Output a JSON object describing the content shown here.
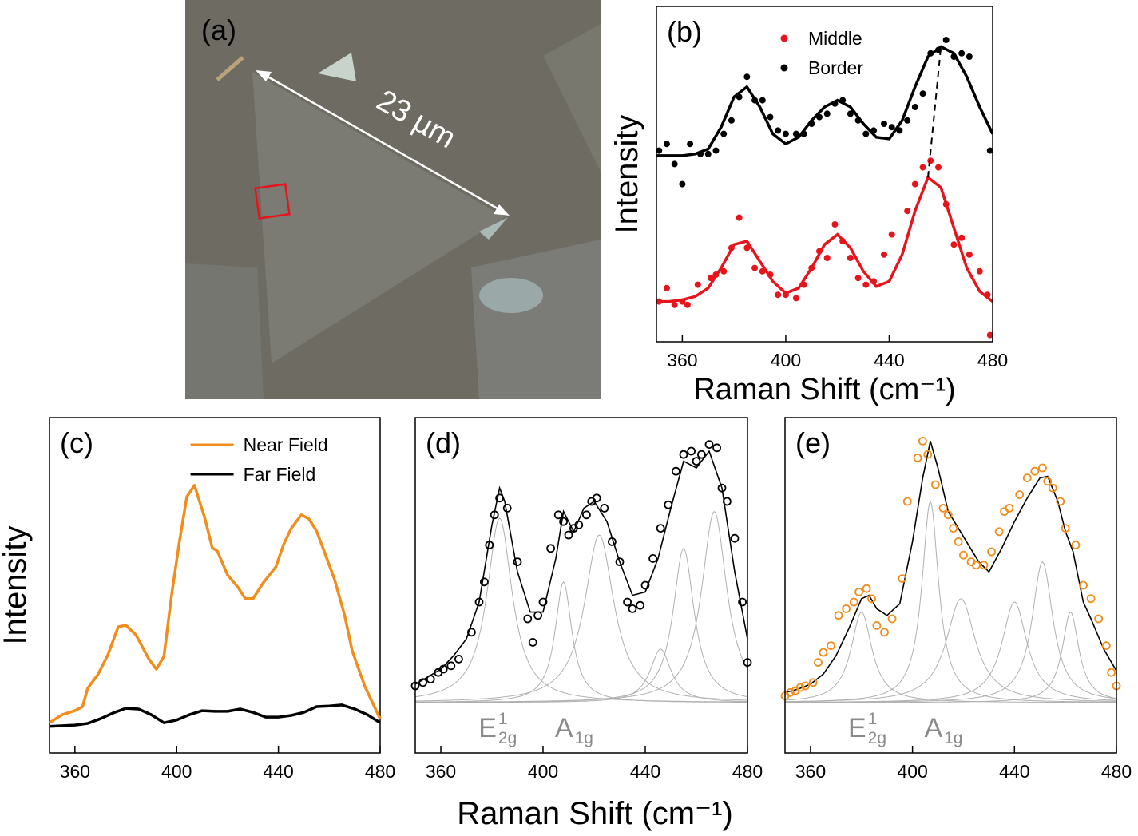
{
  "chart_data": [
    {
      "type": "image",
      "label": "(a)",
      "annotation": "23 µm"
    },
    {
      "type": "scatter",
      "label": "(b)",
      "x_label": "Raman Shift (cm⁻¹)",
      "y_label": "Intensity",
      "xlim": [
        350,
        480
      ],
      "xticks": [
        360,
        400,
        440,
        480
      ],
      "ylim": [
        0,
        10
      ],
      "legend": "top",
      "peak_guide": true,
      "series": [
        {
          "name": "Middle",
          "color": "#e8141c",
          "x": [
            351,
            354,
            357,
            360,
            362,
            366,
            371,
            373,
            376,
            379,
            382,
            385,
            388,
            391,
            394,
            397,
            400,
            404,
            407,
            410,
            413,
            416,
            419,
            422,
            425,
            428,
            431,
            434,
            438,
            441,
            447,
            450,
            453,
            456,
            459,
            462,
            465,
            468,
            471,
            475,
            478,
            479
          ],
          "values": [
            1.2,
            1.6,
            1.1,
            1.2,
            1.1,
            1.7,
            1.9,
            2.0,
            2.1,
            2.8,
            3.7,
            2.8,
            2.2,
            2.1,
            2.0,
            1.4,
            1.4,
            1.3,
            1.7,
            2.2,
            2.7,
            2.5,
            3.5,
            3.0,
            2.5,
            1.9,
            1.7,
            1.8,
            2.6,
            3.2,
            3.9,
            4.7,
            5.2,
            5.4,
            5.2,
            4.1,
            2.9,
            3.1,
            2.6,
            2.1,
            1.4,
            0.2
          ],
          "fit": {
            "x": [
              350,
              355,
              360,
              365,
              370,
              375,
              380,
              385,
              390,
              395,
              400,
              405,
              410,
              415,
              420,
              425,
              430,
              435,
              440,
              445,
              450,
              455,
              460,
              465,
              470,
              475,
              480
            ],
            "values": [
              1.2,
              1.2,
              1.25,
              1.35,
              1.6,
              2.2,
              2.9,
              3.0,
              2.4,
              1.8,
              1.45,
              1.6,
              2.2,
              2.9,
              3.2,
              2.8,
              2.1,
              1.65,
              1.8,
              2.6,
              3.9,
              4.9,
              4.6,
              3.4,
              2.2,
              1.5,
              1.2
            ]
          }
        },
        {
          "name": "Border",
          "color": "#000000",
          "x": [
            351,
            354,
            357,
            360,
            363,
            367,
            370,
            373,
            376,
            379,
            382,
            385,
            388,
            391,
            394,
            397,
            400,
            404,
            407,
            410,
            413,
            416,
            419,
            422,
            425,
            428,
            431,
            434,
            438,
            441,
            444,
            447,
            450,
            453,
            456,
            459,
            462,
            465,
            468,
            471,
            479
          ],
          "values": [
            5.7,
            5.9,
            5.3,
            4.7,
            5.9,
            5.6,
            5.6,
            5.7,
            6.2,
            6.6,
            7.3,
            7.9,
            7.2,
            7.2,
            6.7,
            6.3,
            6.2,
            6.2,
            6.2,
            6.5,
            6.7,
            6.8,
            7.1,
            7.2,
            6.8,
            6.6,
            6.2,
            6.3,
            6.5,
            6.4,
            6.3,
            6.6,
            7.0,
            7.4,
            8.6,
            8.7,
            9.0,
            8.5,
            8.6,
            8.5,
            5.7
          ],
          "fit": {
            "x": [
              350,
              355,
              360,
              365,
              370,
              375,
              380,
              385,
              390,
              395,
              400,
              405,
              410,
              415,
              420,
              425,
              430,
              435,
              440,
              445,
              450,
              455,
              460,
              465,
              470,
              475,
              480
            ],
            "values": [
              5.55,
              5.55,
              5.55,
              5.6,
              5.75,
              6.4,
              7.3,
              7.6,
              7.0,
              6.2,
              5.9,
              6.1,
              6.6,
              7.0,
              7.2,
              7.0,
              6.5,
              6.1,
              6.05,
              6.6,
              7.6,
              8.5,
              8.8,
              8.6,
              7.9,
              7.0,
              6.2
            ]
          }
        }
      ]
    },
    {
      "type": "line",
      "label": "(c)",
      "y_label": "Intensity",
      "xlim": [
        350,
        480
      ],
      "xticks": [
        360,
        400,
        440,
        480
      ],
      "ylim": [
        0,
        10
      ],
      "legend": "upper right",
      "series": [
        {
          "name": "Near Field",
          "color": "#f28c1a",
          "x": [
            350,
            352,
            355,
            360,
            363,
            365,
            369,
            373,
            377,
            380,
            384,
            389,
            392,
            395,
            398,
            401,
            404,
            407,
            411,
            414,
            416,
            420,
            424,
            427,
            430,
            434,
            439,
            442,
            445,
            449,
            452,
            455,
            458,
            462,
            466,
            469,
            474,
            477,
            480
          ],
          "values": [
            0.9,
            1.0,
            1.14,
            1.26,
            1.38,
            1.93,
            2.33,
            2.93,
            3.76,
            3.81,
            3.52,
            2.81,
            2.5,
            2.88,
            4.71,
            6.26,
            7.64,
            7.98,
            7.02,
            6.12,
            6.02,
            5.31,
            4.95,
            4.6,
            4.6,
            5.07,
            5.55,
            6.21,
            6.69,
            7.1,
            6.98,
            6.62,
            6.02,
            5.19,
            4.12,
            3.05,
            1.98,
            1.5,
            1.02
          ]
        },
        {
          "name": "Far Field",
          "color": "#000000",
          "x": [
            350,
            360,
            365,
            370,
            375,
            380,
            385,
            390,
            395,
            400,
            405,
            410,
            415,
            420,
            425,
            430,
            435,
            440,
            445,
            450,
            455,
            460,
            465,
            470,
            475,
            480
          ],
          "values": [
            0.79,
            0.83,
            0.88,
            1.02,
            1.19,
            1.33,
            1.31,
            1.14,
            0.9,
            0.98,
            1.14,
            1.26,
            1.24,
            1.24,
            1.31,
            1.21,
            1.07,
            1.07,
            1.12,
            1.21,
            1.38,
            1.4,
            1.43,
            1.31,
            1.14,
            0.9
          ]
        }
      ]
    },
    {
      "type": "scatter",
      "label": "(d)",
      "xlim": [
        350,
        480
      ],
      "xticks": [
        360,
        400,
        440,
        480
      ],
      "ylim": [
        -1.5,
        8.5
      ],
      "peak_labels": [
        {
          "base": "E",
          "sup": "1",
          "sub": "2g"
        },
        {
          "base": "A",
          "sub": "1g"
        }
      ],
      "series": [
        {
          "color": "#000000",
          "marker": "open",
          "x": [
            350,
            353,
            356,
            359,
            361,
            364,
            367,
            372,
            375,
            377,
            379,
            381,
            383,
            386,
            390,
            394,
            396,
            398,
            400,
            403,
            406,
            408,
            410,
            412,
            414,
            417,
            419,
            421,
            424,
            427,
            430,
            433,
            435,
            438,
            440,
            443,
            446,
            449,
            452,
            455,
            458,
            460,
            462,
            465,
            468,
            470,
            472,
            475,
            478,
            480
          ],
          "values": [
            0.5,
            0.6,
            0.7,
            0.9,
            1.0,
            1.1,
            1.3,
            2.1,
            3.0,
            3.6,
            4.7,
            5.6,
            6.1,
            5.8,
            4.2,
            2.5,
            1.8,
            2.6,
            3.0,
            4.6,
            5.6,
            5.4,
            5.0,
            5.2,
            5.3,
            5.6,
            6.0,
            6.1,
            5.8,
            4.8,
            4.2,
            3.0,
            2.8,
            2.9,
            3.5,
            4.3,
            5.2,
            5.9,
            6.9,
            7.4,
            7.5,
            7.2,
            7.4,
            7.7,
            7.6,
            6.4,
            6.0,
            4.9,
            3.0,
            1.2
          ]
        }
      ],
      "fit": {
        "color": "#000000",
        "x": [
          350,
          355,
          360,
          365,
          370,
          375,
          380,
          383,
          385,
          390,
          395,
          400,
          405,
          408,
          412,
          416,
          420,
          425,
          430,
          435,
          440,
          445,
          450,
          455,
          460,
          465,
          470,
          475,
          480
        ],
        "values": [
          0.55,
          0.77,
          1.0,
          1.4,
          1.9,
          3.0,
          5.3,
          6.4,
          6.0,
          3.9,
          2.7,
          2.7,
          4.3,
          5.7,
          5.1,
          5.8,
          6.0,
          5.4,
          4.2,
          3.2,
          3.3,
          4.3,
          5.8,
          7.2,
          7.0,
          7.5,
          6.4,
          3.9,
          1.9
        ]
      },
      "component_color": "#b0b0b0",
      "components": [
        {
          "center": 383,
          "height": 5.5,
          "width": 6
        },
        {
          "center": 408,
          "height": 3.6,
          "width": 4
        },
        {
          "center": 422,
          "height": 5.0,
          "width": 7
        },
        {
          "center": 446,
          "height": 1.6,
          "width": 5
        },
        {
          "center": 455,
          "height": 4.6,
          "width": 5
        },
        {
          "center": 467,
          "height": 5.7,
          "width": 6
        }
      ]
    },
    {
      "type": "scatter",
      "label": "(e)",
      "xlim": [
        350,
        480
      ],
      "xticks": [
        360,
        400,
        440,
        480
      ],
      "ylim": [
        -1.5,
        8.5
      ],
      "peak_labels": [
        {
          "base": "E",
          "sup": "1",
          "sub": "2g"
        },
        {
          "base": "A",
          "sub": "1g"
        }
      ],
      "series": [
        {
          "color": "#f28c1a",
          "marker": "open",
          "x": [
            350,
            352,
            354,
            356,
            358,
            361,
            363,
            365,
            368,
            371,
            374,
            377,
            379,
            382,
            384,
            386,
            389,
            392,
            396,
            398,
            402,
            404,
            406,
            409,
            412,
            414,
            416,
            418,
            420,
            423,
            425,
            428,
            431,
            434,
            436,
            438,
            442,
            445,
            448,
            451,
            453,
            455,
            458,
            460,
            464,
            467,
            470,
            473,
            476,
            478,
            480
          ],
          "values": [
            0.2,
            0.3,
            0.35,
            0.45,
            0.5,
            0.6,
            1.2,
            1.5,
            1.7,
            2.6,
            2.8,
            3.0,
            3.3,
            3.4,
            3.1,
            2.3,
            2.1,
            2.5,
            3.7,
            6.0,
            7.3,
            7.8,
            7.4,
            6.5,
            5.8,
            5.6,
            5.2,
            4.8,
            4.4,
            4.2,
            4.1,
            4.1,
            4.5,
            5.1,
            5.7,
            5.8,
            6.2,
            6.7,
            6.9,
            7.0,
            6.6,
            6.4,
            6.0,
            5.2,
            4.7,
            3.5,
            3.1,
            2.5,
            1.7,
            0.9,
            0.5
          ]
        }
      ],
      "fit": {
        "color": "#000000",
        "x": [
          350,
          355,
          360,
          365,
          370,
          375,
          380,
          383,
          386,
          390,
          395,
          400,
          404,
          407,
          410,
          414,
          418,
          422,
          426,
          430,
          435,
          440,
          445,
          450,
          453,
          457,
          460,
          463,
          467,
          470,
          475,
          480
        ],
        "values": [
          0.3,
          0.4,
          0.55,
          0.85,
          1.4,
          2.2,
          3.1,
          3.2,
          2.8,
          2.6,
          2.95,
          4.8,
          6.7,
          7.8,
          7.0,
          5.7,
          5.2,
          4.7,
          4.2,
          3.9,
          4.6,
          5.4,
          6.1,
          6.7,
          6.75,
          6.0,
          5.1,
          4.5,
          3.0,
          2.5,
          1.6,
          0.95
        ]
      },
      "component_color": "#b0b0b0",
      "components": [
        {
          "center": 380,
          "height": 2.7,
          "width": 5
        },
        {
          "center": 407,
          "height": 6.0,
          "width": 4
        },
        {
          "center": 419,
          "height": 3.1,
          "width": 7
        },
        {
          "center": 440,
          "height": 3.0,
          "width": 6
        },
        {
          "center": 451,
          "height": 4.2,
          "width": 5
        },
        {
          "center": 462,
          "height": 2.7,
          "width": 4
        }
      ]
    }
  ],
  "shared_x_label": "Raman Shift (cm⁻¹)"
}
